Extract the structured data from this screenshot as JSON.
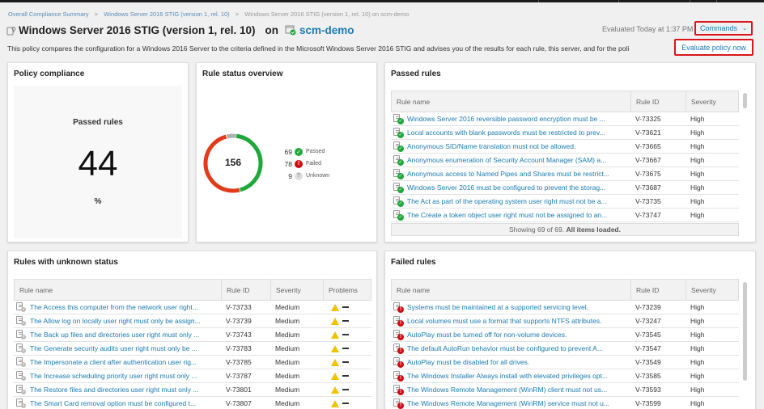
{
  "breadcrumb": [
    {
      "label": "Overall Compliance Summary"
    },
    {
      "label": "Windows Server 2016 STIG (version 1, rel. 10)"
    },
    {
      "label": "Windows Server 2016 STIG (version 1, rel. 10) on scm-demo"
    }
  ],
  "header": {
    "title": "Windows Server 2016 STIG (version 1, rel. 10)",
    "on_label": "on",
    "node_name": "scm-demo",
    "evaluated": "Evaluated Today at 1:37 PM",
    "commands_label": "Commands",
    "evaluate_now_label": "Evaluate policy now",
    "description": "This policy compares the configuration for a Windows 2016 Server to the criteria defined in the Microsoft Windows Server 2016 STIG and advises you of the results for each rule, this server, and for the poli"
  },
  "colors": {
    "accent": "#1a7bb0",
    "passed": "#1fa83a",
    "failed": "#e03c1a",
    "unknown": "#b0b0b0",
    "highlight": "#d9161c"
  },
  "policy_compliance": {
    "title": "Policy compliance",
    "label": "Passed rules",
    "value": "44",
    "unit": "%"
  },
  "rule_status": {
    "title": "Rule status overview",
    "total": "156",
    "legend": [
      {
        "count": "69",
        "label": "Passed",
        "icon": "check-circle-icon"
      },
      {
        "count": "78",
        "label": "Failed",
        "icon": "exclamation-circle-icon"
      },
      {
        "count": "9",
        "label": "Unknown",
        "icon": "question-circle-icon"
      }
    ]
  },
  "chart_data": {
    "type": "pie",
    "title": "Rule status overview",
    "categories": [
      "Passed",
      "Failed",
      "Unknown"
    ],
    "values": [
      69,
      78,
      9
    ],
    "total": 156,
    "colors": [
      "#1fa83a",
      "#e03c1a",
      "#b0b0b0"
    ]
  },
  "passed_rules": {
    "title": "Passed rules",
    "columns": [
      "Rule name",
      "Rule ID",
      "Severity"
    ],
    "rows": [
      {
        "name": "Windows Server 2016 reversible password encryption must be ...",
        "id": "V-73325",
        "severity": "High"
      },
      {
        "name": "Local accounts with blank passwords must be restricted to prev...",
        "id": "V-73621",
        "severity": "High"
      },
      {
        "name": "Anonymous SID/Name translation must not be allowed.",
        "id": "V-73665",
        "severity": "High"
      },
      {
        "name": "Anonymous enumeration of Security Account Manager (SAM) a...",
        "id": "V-73667",
        "severity": "High"
      },
      {
        "name": "Anonymous access to Named Pipes and Shares must be restrict...",
        "id": "V-73675",
        "severity": "High"
      },
      {
        "name": "Windows Server 2016 must be configured to prevent the storag...",
        "id": "V-73687",
        "severity": "High"
      },
      {
        "name": "The Act as part of the operating system user right must not be a...",
        "id": "V-73735",
        "severity": "High"
      },
      {
        "name": "The Create a token object user right must not be assigned to an...",
        "id": "V-73747",
        "severity": "High"
      }
    ],
    "footer_prefix": "Showing 69 of 69.",
    "footer_bold": "All items loaded."
  },
  "unknown_rules": {
    "title": "Rules with unknown status",
    "columns": [
      "Rule name",
      "Rule ID",
      "Severity",
      "Problems"
    ],
    "rows": [
      {
        "name": "The Access this computer from the network user right...",
        "id": "V-73733",
        "severity": "Medium"
      },
      {
        "name": "The Allow log on locally user right must only be assign...",
        "id": "V-73739",
        "severity": "Medium"
      },
      {
        "name": "The Back up files and directories user right must only ...",
        "id": "V-73743",
        "severity": "Medium"
      },
      {
        "name": "The Generate security audits user right must only be ...",
        "id": "V-73783",
        "severity": "Medium"
      },
      {
        "name": "The Impersonate a client after authentication user rig...",
        "id": "V-73785",
        "severity": "Medium"
      },
      {
        "name": "The Increase scheduling priority user right must only ...",
        "id": "V-73787",
        "severity": "Medium"
      },
      {
        "name": "The Restore files and directories user right must only ...",
        "id": "V-73801",
        "severity": "Medium"
      },
      {
        "name": "The Smart Card removal option must be configured t...",
        "id": "V-73807",
        "severity": "Medium"
      }
    ]
  },
  "failed_rules": {
    "title": "Failed rules",
    "columns": [
      "Rule name",
      "Rule ID",
      "Severity"
    ],
    "rows": [
      {
        "name": "Systems must be maintained at a supported servicing level.",
        "id": "V-73239",
        "severity": "High"
      },
      {
        "name": "Local volumes must use a format that supports NTFS attributes.",
        "id": "V-73247",
        "severity": "High"
      },
      {
        "name": "AutoPlay must be turned off for non-volume devices.",
        "id": "V-73545",
        "severity": "High"
      },
      {
        "name": "The default AutoRun behavior must be configured to prevent A...",
        "id": "V-73547",
        "severity": "High"
      },
      {
        "name": "AutoPlay must be disabled for all drives.",
        "id": "V-73549",
        "severity": "High"
      },
      {
        "name": "The Windows Installer Always install with elevated privileges opt...",
        "id": "V-73585",
        "severity": "High"
      },
      {
        "name": "The Windows Remote Management (WinRM) client must not us...",
        "id": "V-73593",
        "severity": "High"
      },
      {
        "name": "The Windows Remote Management (WinRM) service must not u...",
        "id": "V-73599",
        "severity": "High"
      }
    ]
  }
}
